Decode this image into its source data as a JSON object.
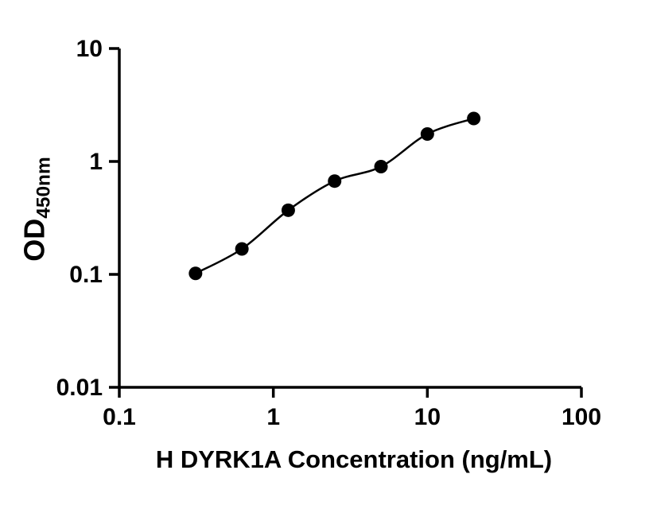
{
  "chart_data": {
    "type": "scatter",
    "title": "",
    "xlabel": "H DYRK1A Concentration (ng/mL)",
    "ylabel_main": "OD",
    "ylabel_sub": "450nm",
    "x_scale": "log",
    "y_scale": "log",
    "xlim": [
      0.1,
      100
    ],
    "ylim": [
      0.01,
      10
    ],
    "x_ticks": [
      0.1,
      1,
      10,
      100
    ],
    "x_tick_labels": [
      "0.1",
      "1",
      "10",
      "100"
    ],
    "y_ticks": [
      0.01,
      0.1,
      1,
      10
    ],
    "y_tick_labels": [
      "0.01",
      "0.1",
      "1",
      "10"
    ],
    "grid": false,
    "legend": "none",
    "marker_color": "#000000",
    "line_color": "#000000",
    "axis_color": "#000000",
    "has_fit_line": true,
    "points": [
      {
        "x": 0.3125,
        "y": 0.102
      },
      {
        "x": 0.625,
        "y": 0.168
      },
      {
        "x": 1.25,
        "y": 0.37
      },
      {
        "x": 2.5,
        "y": 0.67
      },
      {
        "x": 5,
        "y": 0.9
      },
      {
        "x": 10,
        "y": 1.75
      },
      {
        "x": 20,
        "y": 2.4
      }
    ]
  }
}
